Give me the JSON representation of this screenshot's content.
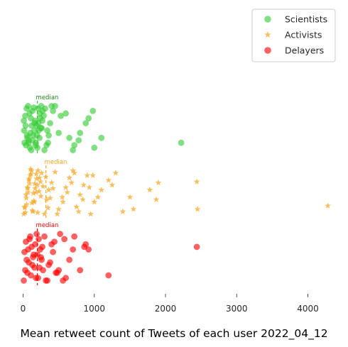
{
  "chart_data": {
    "type": "scatter",
    "title": "",
    "xlabel": "Mean retweet count of Tweets of each user 2022_04_12",
    "ylabel": "",
    "xlim": [
      -150,
      4420
    ],
    "xticks": [
      0,
      1000,
      2000,
      3000,
      4000
    ],
    "grid": false,
    "legend_position": "top-right",
    "series": [
      {
        "name": "Scientists",
        "marker": "circle",
        "color": "#33cc33",
        "median_label": "median",
        "median": 200,
        "x": [
          20,
          40,
          60,
          80,
          100,
          120,
          140,
          160,
          180,
          200,
          220,
          240,
          260,
          300,
          330,
          360,
          380,
          420,
          500,
          530,
          600,
          700,
          720,
          780,
          800,
          880,
          920,
          980,
          1000,
          1100,
          2220,
          10,
          30,
          50,
          70,
          90,
          110,
          130,
          150,
          170,
          190,
          210,
          230,
          250,
          270,
          290,
          310,
          350,
          450,
          650,
          15,
          35,
          55,
          75,
          95,
          115,
          135,
          155,
          175,
          195,
          215,
          235,
          255,
          275,
          340,
          400
        ],
        "y": [
          0.2,
          0.15,
          0.3,
          0.25,
          0.4,
          0.55,
          0.35,
          0.6,
          0.2,
          0.1,
          0.45,
          0.7,
          0.5,
          0.05,
          0.15,
          0.35,
          0.6,
          0.85,
          0.4,
          0.75,
          0.8,
          0.05,
          0.15,
          0.25,
          0.4,
          0.6,
          0.7,
          0.85,
          0.1,
          0.3,
          0.2,
          0.65,
          0.75,
          0.9,
          0.95,
          0.8,
          0.7,
          0.85,
          0.92,
          0.65,
          0.55,
          0.9,
          0.3,
          0.5,
          0.65,
          0.75,
          0.9,
          0.2,
          0.95,
          0.3,
          0.45,
          0.55,
          0.35,
          0.2,
          0.1,
          0.05,
          0.25,
          0.45,
          0.15,
          0.35,
          0.6,
          0.8,
          0.95,
          0.85,
          0.45,
          0.95
        ]
      },
      {
        "name": "Activists",
        "marker": "star",
        "color": "#f5a623",
        "median_label": "median",
        "median": 320,
        "x": [
          10,
          20,
          40,
          60,
          80,
          100,
          120,
          140,
          160,
          180,
          200,
          230,
          260,
          300,
          330,
          360,
          400,
          450,
          500,
          550,
          600,
          650,
          700,
          750,
          800,
          850,
          900,
          950,
          1000,
          1100,
          1200,
          1300,
          1400,
          1500,
          1550,
          1780,
          1870,
          1900,
          2440,
          2450,
          4280,
          30,
          50,
          70,
          90,
          110,
          130,
          150,
          170,
          190,
          210,
          250,
          280,
          320,
          350,
          380,
          420,
          480,
          560,
          620,
          680,
          720,
          780,
          840,
          930,
          980,
          1050,
          1250,
          25,
          45,
          65,
          85,
          105,
          125,
          145,
          165,
          185,
          205,
          225,
          245
        ],
        "y": [
          0.05,
          0.2,
          0.45,
          0.6,
          0.75,
          0.85,
          0.95,
          0.1,
          0.3,
          0.5,
          0.65,
          0.8,
          0.9,
          0.05,
          0.35,
          0.55,
          0.7,
          0.92,
          0.15,
          0.4,
          0.6,
          0.8,
          0.95,
          0.2,
          0.45,
          0.65,
          0.85,
          0.05,
          0.3,
          0.55,
          0.75,
          0.9,
          0.1,
          0.4,
          0.15,
          0.55,
          0.35,
          0.7,
          0.72,
          0.15,
          0.22,
          0.08,
          0.25,
          0.5,
          0.68,
          0.88,
          0.12,
          0.32,
          0.58,
          0.78,
          0.95,
          0.42,
          0.62,
          0.82,
          0.18,
          0.38,
          0.58,
          0.05,
          0.3,
          0.5,
          0.7,
          0.9,
          0.1,
          0.35,
          0.6,
          0.85,
          0.4,
          0.65,
          0.18,
          0.38,
          0.58,
          0.78,
          0.98,
          0.28,
          0.48,
          0.68,
          0.88,
          0.08,
          0.52,
          0.72
        ]
      },
      {
        "name": "Delayers",
        "marker": "circle",
        "color": "#ff0000",
        "median_label": "median",
        "median": 200,
        "x": [
          10,
          30,
          50,
          70,
          90,
          110,
          130,
          150,
          170,
          190,
          210,
          230,
          250,
          270,
          300,
          340,
          380,
          420,
          440,
          480,
          500,
          560,
          600,
          650,
          700,
          720,
          800,
          860,
          880,
          920,
          1200,
          2440,
          20,
          40,
          60,
          80,
          100,
          120,
          140,
          160,
          180,
          200,
          220,
          240,
          260,
          280,
          320,
          360,
          400,
          460,
          520,
          580
        ],
        "y": [
          0.05,
          0.25,
          0.45,
          0.65,
          0.85,
          0.15,
          0.35,
          0.55,
          0.75,
          0.95,
          0.1,
          0.3,
          0.5,
          0.7,
          0.9,
          0.05,
          0.4,
          0.6,
          0.8,
          0.2,
          0.25,
          0.05,
          0.1,
          0.45,
          0.65,
          0.9,
          0.25,
          0.7,
          0.75,
          0.65,
          0.15,
          0.7,
          0.6,
          0.8,
          0.2,
          0.4,
          0.9,
          0.7,
          0.5,
          0.3,
          0.1,
          0.55,
          0.85,
          0.65,
          0.45,
          0.25,
          0.05,
          0.35,
          0.75,
          0.2,
          0.95,
          0.85
        ]
      }
    ]
  }
}
